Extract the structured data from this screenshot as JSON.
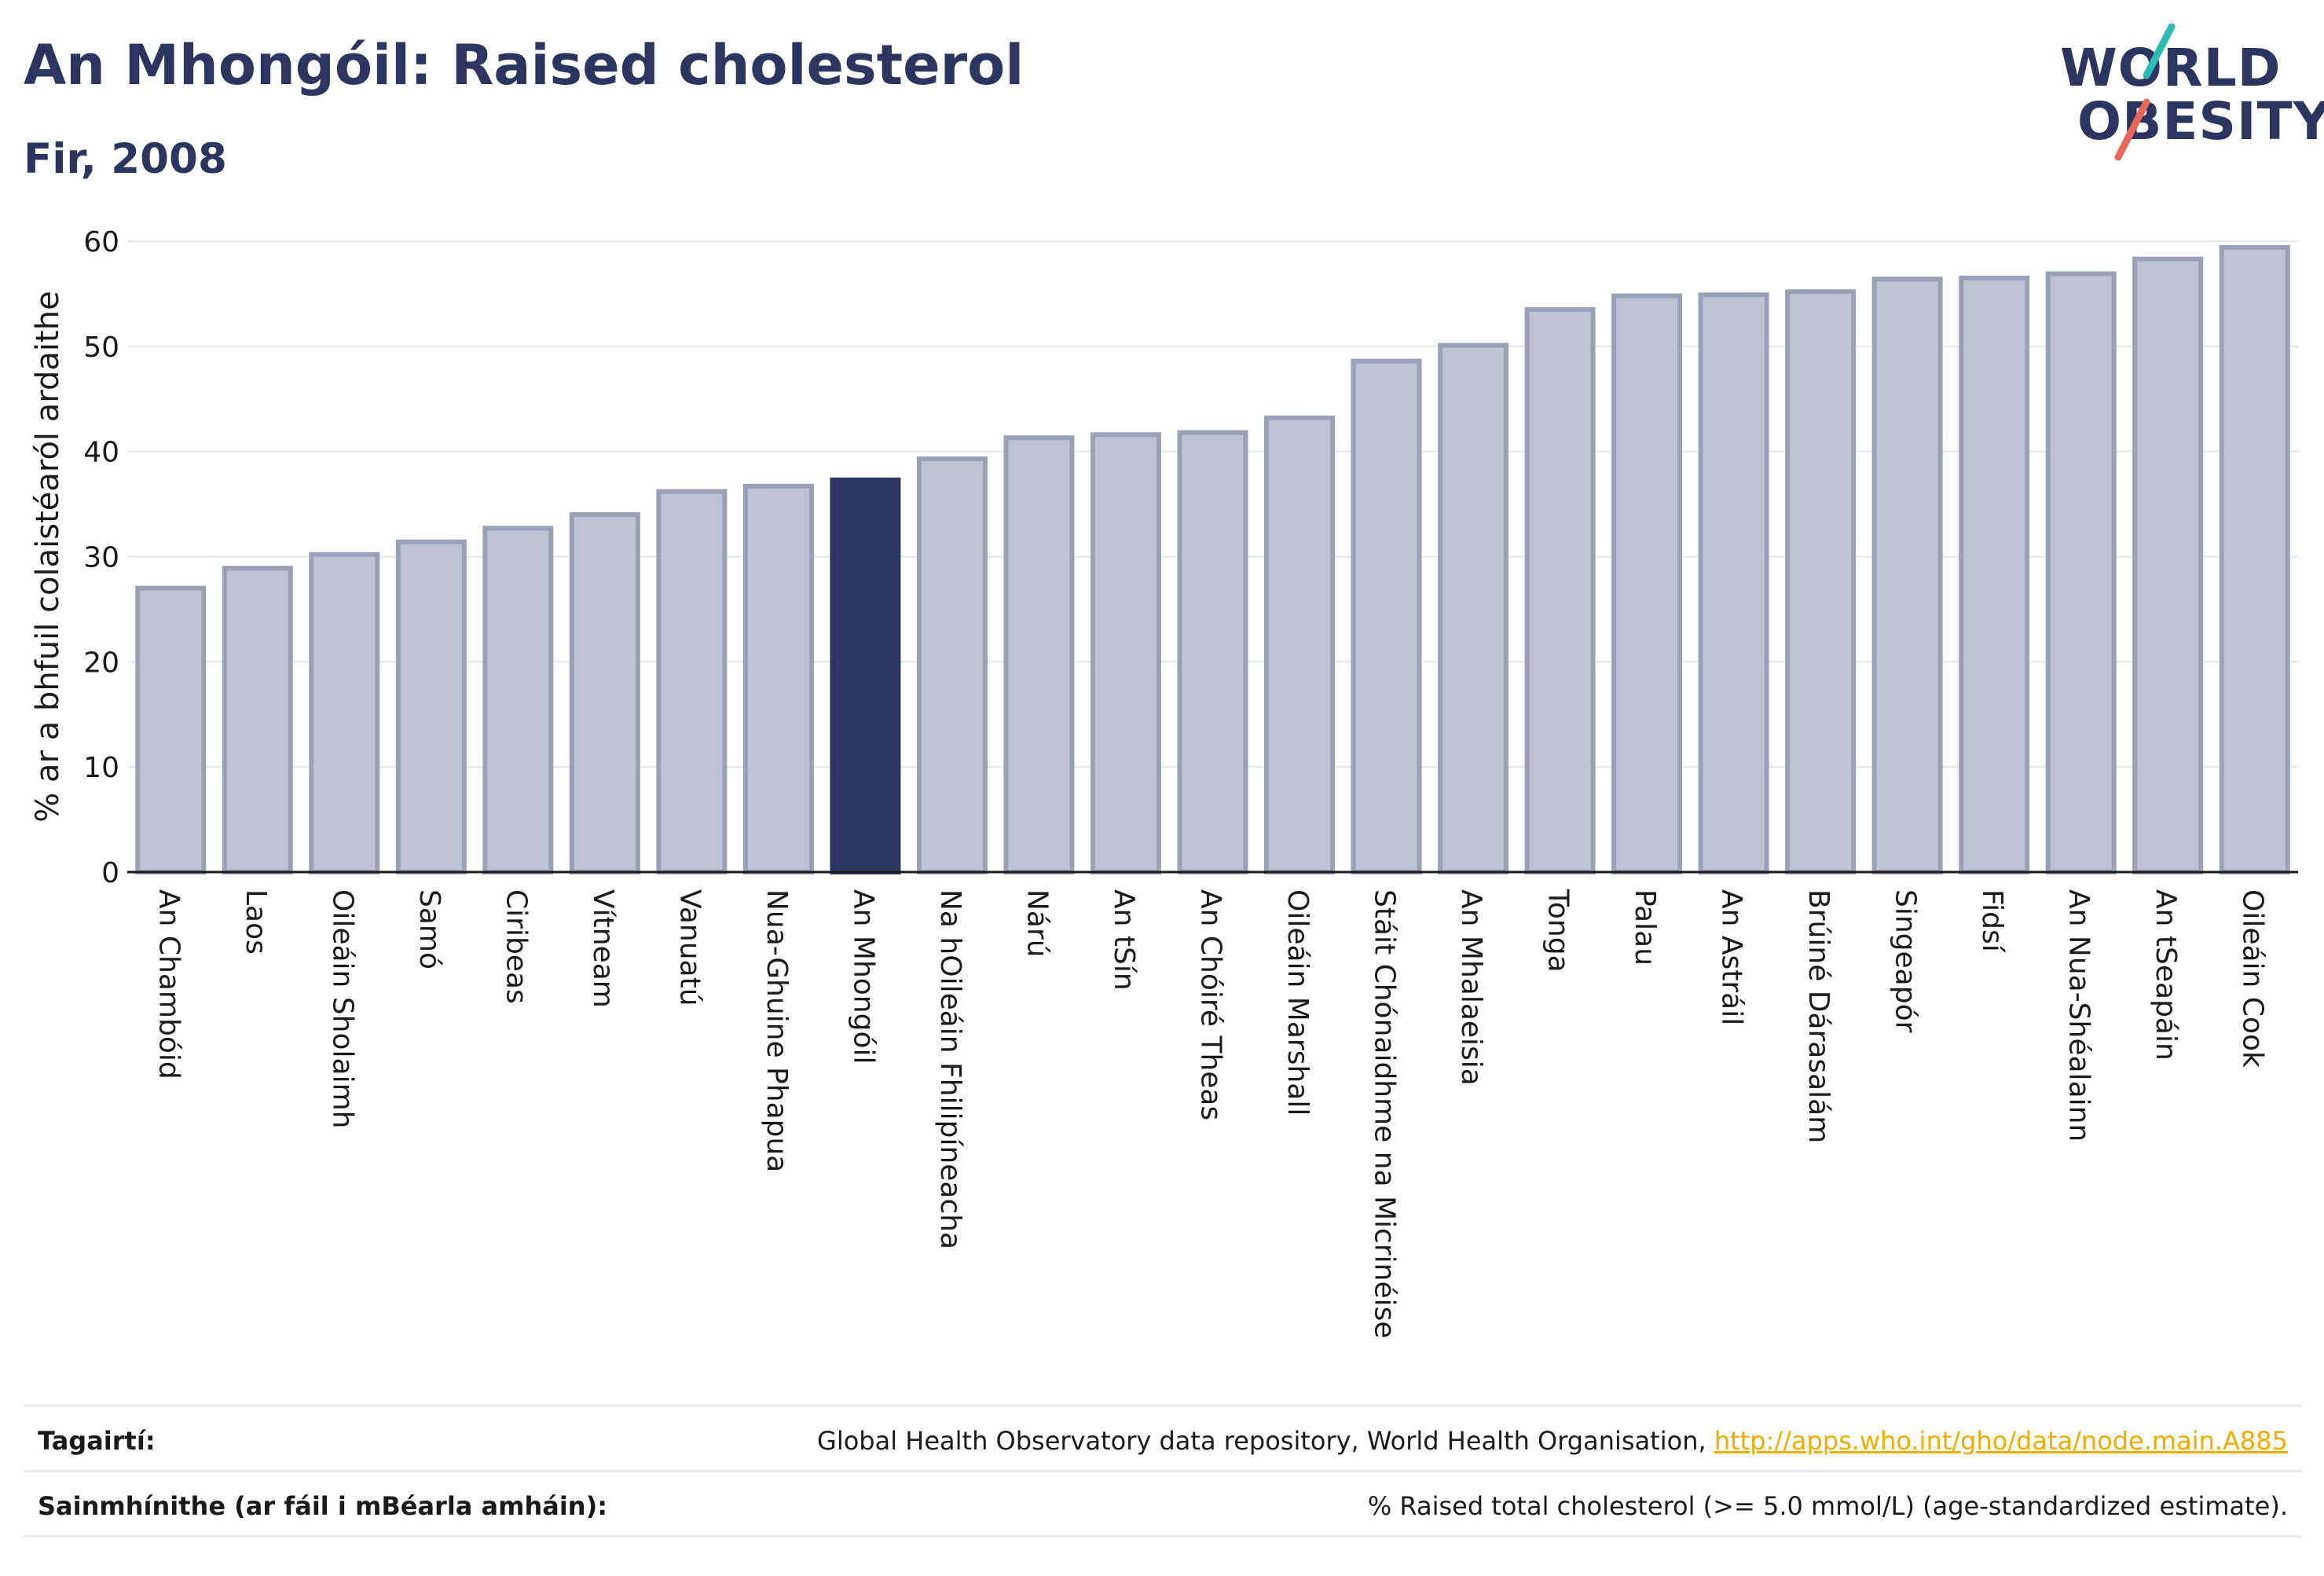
{
  "header": {
    "title": "An Mhongóil: Raised cholesterol",
    "subtitle": "Fir, 2008"
  },
  "logo": {
    "line1": "WORLD",
    "line2": "OBESITY",
    "slash_colors": [
      "#2bbcb6",
      "#e8665a"
    ]
  },
  "chart_data": {
    "type": "bar",
    "categories": [
      "An Chambóid",
      "Laos",
      "Oileáin Sholaimh",
      "Samó",
      "Ciribeas",
      "Vítneam",
      "Vanuatú",
      "Nua-Ghuine Phapua",
      "An Mhongóil",
      "Na hOileáin Fhilipíneacha",
      "Nárú",
      "An tSín",
      "An Chóiré Theas",
      "Oileáin Marshall",
      "Stáit Chónaidhme na Micrinéise",
      "An Mhalaeisia",
      "Tonga",
      "Palau",
      "An Astráil",
      "Brúiné Dárasalám",
      "Singeapór",
      "Fidsí",
      "An Nua-Shéalainn",
      "An tSeapáin",
      "Oileáin Cook"
    ],
    "values": [
      27.0,
      28.9,
      30.2,
      31.4,
      32.7,
      34.0,
      36.2,
      36.7,
      37.3,
      39.3,
      41.3,
      41.6,
      41.8,
      43.2,
      48.6,
      50.1,
      53.5,
      54.8,
      54.9,
      55.2,
      56.4,
      56.5,
      56.9,
      58.3,
      59.4
    ],
    "highlight": "An Mhongóil",
    "ylabel": "% ar a bhfuil colaistéaról ardaithe",
    "xlabel": "",
    "ylim": [
      0,
      60
    ],
    "yticks": [
      0,
      10,
      20,
      30,
      40,
      50,
      60
    ],
    "grid": true,
    "colors": {
      "bar": "#bfc3d1",
      "bar_stroke": "#9aa0b8",
      "highlight": "#2b3560",
      "grid": "#e4e6ee",
      "axis": "#1a1a1a"
    }
  },
  "footer": {
    "ref_label": "Tagairtí:",
    "ref_text": "Global Health Observatory data repository, World Health Organisation, ",
    "ref_link": "http://apps.who.int/gho/data/node.main.A885",
    "def_label": "Sainmhínithe (ar fáil i mBéarla amháin):",
    "def_text": "% Raised total cholesterol (>= 5.0 mmol/L) (age-standardized estimate)."
  }
}
